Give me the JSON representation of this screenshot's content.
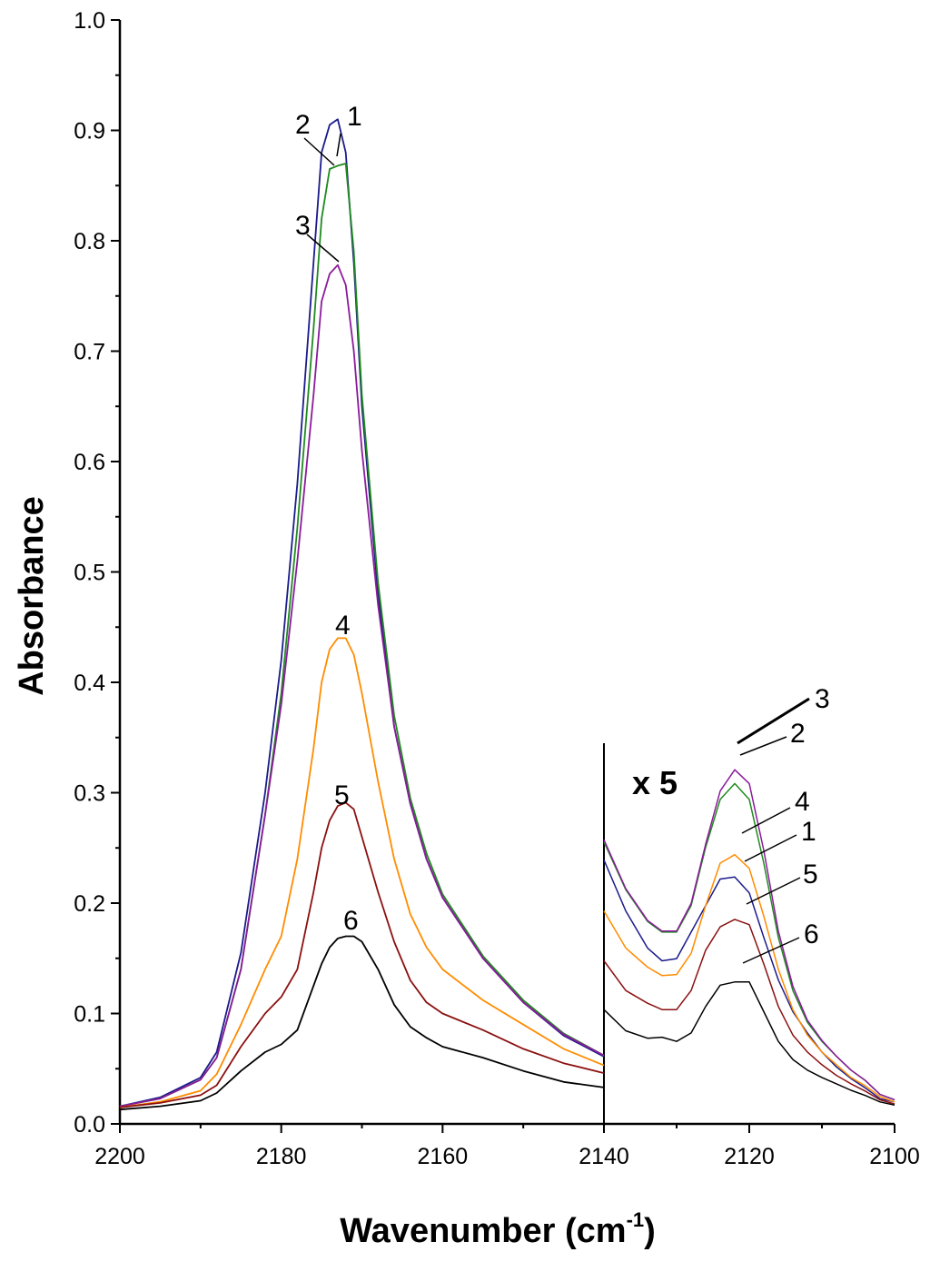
{
  "chart_data": {
    "type": "line",
    "title": "",
    "xlabel": "Wavenumber (cm",
    "xlabel_sup": "-1",
    "xlabel_close": ")",
    "ylabel": "Absorbance",
    "xlim": [
      2200,
      2100
    ],
    "ylim": [
      0.0,
      1.0
    ],
    "x_ticks": [
      "2200",
      "2180",
      "2160",
      "2140",
      "2120",
      "2100"
    ],
    "y_ticks": [
      "0.0",
      "0.1",
      "0.2",
      "0.3",
      "0.4",
      "0.5",
      "0.6",
      "0.7",
      "0.8",
      "0.9",
      "1.0"
    ],
    "inset_label": "x 5",
    "inset_range": [
      2140,
      2100
    ],
    "inset_scale": 5,
    "series": [
      {
        "name": "1",
        "color": "#1a1a8c",
        "x": [
          2200,
          2195,
          2190,
          2188,
          2185,
          2182,
          2180,
          2178,
          2176,
          2175,
          2174,
          2173,
          2172,
          2171,
          2170,
          2168,
          2166,
          2164,
          2162,
          2160,
          2155,
          2150,
          2145,
          2140
        ],
        "y": [
          0.016,
          0.024,
          0.042,
          0.065,
          0.155,
          0.3,
          0.42,
          0.58,
          0.78,
          0.88,
          0.905,
          0.91,
          0.88,
          0.78,
          0.65,
          0.48,
          0.36,
          0.29,
          0.24,
          0.205,
          0.15,
          0.11,
          0.08,
          0.061
        ],
        "inset_x": [
          2140,
          2137,
          2134,
          2132,
          2130,
          2128,
          2126,
          2124,
          2122,
          2120,
          2118,
          2116,
          2114,
          2112,
          2110,
          2108,
          2106,
          2104,
          2102,
          2100
        ],
        "inset_y": [
          0.253,
          0.205,
          0.17,
          0.158,
          0.16,
          0.185,
          0.21,
          0.235,
          0.237,
          0.222,
          0.18,
          0.14,
          0.11,
          0.09,
          0.072,
          0.058,
          0.047,
          0.038,
          0.028,
          0.025
        ]
      },
      {
        "name": "2",
        "color": "#1f8a1f",
        "x": [
          2200,
          2195,
          2190,
          2188,
          2185,
          2182,
          2180,
          2178,
          2176,
          2175,
          2174,
          2173,
          2172,
          2171,
          2170,
          2168,
          2166,
          2164,
          2162,
          2160,
          2155,
          2150,
          2145,
          2140
        ],
        "y": [
          0.016,
          0.023,
          0.04,
          0.06,
          0.14,
          0.28,
          0.39,
          0.54,
          0.72,
          0.82,
          0.865,
          0.868,
          0.87,
          0.79,
          0.66,
          0.49,
          0.37,
          0.295,
          0.245,
          0.208,
          0.152,
          0.112,
          0.082,
          0.062
        ],
        "inset_x": [
          2140,
          2137,
          2134,
          2132,
          2130,
          2128,
          2126,
          2124,
          2122,
          2120,
          2118,
          2116,
          2114,
          2112,
          2110,
          2108,
          2106,
          2104,
          2102,
          2100
        ],
        "inset_y": [
          0.27,
          0.225,
          0.195,
          0.185,
          0.185,
          0.21,
          0.265,
          0.31,
          0.325,
          0.31,
          0.25,
          0.18,
          0.13,
          0.1,
          0.082,
          0.068,
          0.055,
          0.045,
          0.032,
          0.027
        ]
      },
      {
        "name": "3",
        "color": "#8b1a9b",
        "x": [
          2200,
          2195,
          2190,
          2188,
          2185,
          2182,
          2180,
          2178,
          2176,
          2175,
          2174,
          2173,
          2172,
          2171,
          2170,
          2168,
          2166,
          2164,
          2162,
          2160,
          2155,
          2150,
          2145,
          2140
        ],
        "y": [
          0.016,
          0.023,
          0.04,
          0.06,
          0.14,
          0.28,
          0.38,
          0.51,
          0.66,
          0.745,
          0.77,
          0.778,
          0.76,
          0.7,
          0.61,
          0.47,
          0.36,
          0.29,
          0.24,
          0.205,
          0.15,
          0.11,
          0.081,
          0.062
        ],
        "inset_x": [
          2140,
          2137,
          2134,
          2132,
          2130,
          2128,
          2126,
          2124,
          2122,
          2120,
          2118,
          2116,
          2114,
          2112,
          2110,
          2108,
          2106,
          2104,
          2102,
          2100
        ],
        "inset_y": [
          0.272,
          0.226,
          0.196,
          0.186,
          0.186,
          0.212,
          0.268,
          0.318,
          0.338,
          0.325,
          0.262,
          0.186,
          0.134,
          0.102,
          0.083,
          0.068,
          0.055,
          0.045,
          0.032,
          0.027
        ]
      },
      {
        "name": "4",
        "color": "#ff8c00",
        "x": [
          2200,
          2195,
          2190,
          2188,
          2185,
          2182,
          2180,
          2178,
          2176,
          2175,
          2174,
          2173,
          2172,
          2171,
          2170,
          2168,
          2166,
          2164,
          2162,
          2160,
          2155,
          2150,
          2145,
          2140
        ],
        "y": [
          0.015,
          0.02,
          0.03,
          0.045,
          0.09,
          0.14,
          0.17,
          0.24,
          0.34,
          0.4,
          0.43,
          0.44,
          0.44,
          0.425,
          0.39,
          0.31,
          0.24,
          0.19,
          0.16,
          0.14,
          0.112,
          0.09,
          0.068,
          0.053
        ],
        "inset_x": [
          2140,
          2137,
          2134,
          2132,
          2130,
          2128,
          2126,
          2124,
          2122,
          2120,
          2118,
          2116,
          2114,
          2112,
          2110,
          2108,
          2106,
          2104,
          2102,
          2100
        ],
        "inset_y": [
          0.205,
          0.17,
          0.152,
          0.144,
          0.145,
          0.165,
          0.21,
          0.25,
          0.258,
          0.245,
          0.2,
          0.15,
          0.112,
          0.088,
          0.072,
          0.06,
          0.048,
          0.04,
          0.03,
          0.025
        ]
      },
      {
        "name": "5",
        "color": "#8b1010",
        "x": [
          2200,
          2195,
          2190,
          2188,
          2185,
          2182,
          2180,
          2178,
          2176,
          2175,
          2174,
          2173,
          2172,
          2171,
          2170,
          2168,
          2166,
          2164,
          2162,
          2160,
          2155,
          2150,
          2145,
          2140
        ],
        "y": [
          0.015,
          0.019,
          0.026,
          0.035,
          0.07,
          0.1,
          0.115,
          0.14,
          0.21,
          0.25,
          0.275,
          0.288,
          0.291,
          0.285,
          0.26,
          0.21,
          0.165,
          0.13,
          0.11,
          0.1,
          0.085,
          0.068,
          0.055,
          0.046
        ],
        "inset_x": [
          2140,
          2137,
          2134,
          2132,
          2130,
          2128,
          2126,
          2124,
          2122,
          2120,
          2118,
          2116,
          2114,
          2112,
          2110,
          2108,
          2106,
          2104,
          2102,
          2100
        ],
        "inset_y": [
          0.158,
          0.13,
          0.118,
          0.112,
          0.112,
          0.13,
          0.168,
          0.19,
          0.197,
          0.192,
          0.155,
          0.115,
          0.088,
          0.072,
          0.06,
          0.05,
          0.042,
          0.035,
          0.027,
          0.023
        ]
      },
      {
        "name": "6",
        "color": "#000000",
        "x": [
          2200,
          2195,
          2190,
          2188,
          2185,
          2182,
          2180,
          2178,
          2176,
          2175,
          2174,
          2173,
          2172,
          2171,
          2170,
          2168,
          2166,
          2164,
          2162,
          2160,
          2155,
          2150,
          2145,
          2140
        ],
        "y": [
          0.013,
          0.016,
          0.021,
          0.028,
          0.048,
          0.065,
          0.072,
          0.085,
          0.125,
          0.145,
          0.16,
          0.168,
          0.17,
          0.17,
          0.165,
          0.14,
          0.108,
          0.088,
          0.078,
          0.07,
          0.06,
          0.048,
          0.038,
          0.033
        ],
        "inset_x": [
          2140,
          2137,
          2134,
          2132,
          2130,
          2128,
          2126,
          2124,
          2122,
          2120,
          2118,
          2116,
          2114,
          2112,
          2110,
          2108,
          2106,
          2104,
          2102,
          2100
        ],
        "inset_y": [
          0.112,
          0.092,
          0.085,
          0.086,
          0.082,
          0.09,
          0.115,
          0.135,
          0.138,
          0.138,
          0.11,
          0.082,
          0.065,
          0.055,
          0.048,
          0.042,
          0.036,
          0.031,
          0.025,
          0.022
        ]
      }
    ]
  }
}
